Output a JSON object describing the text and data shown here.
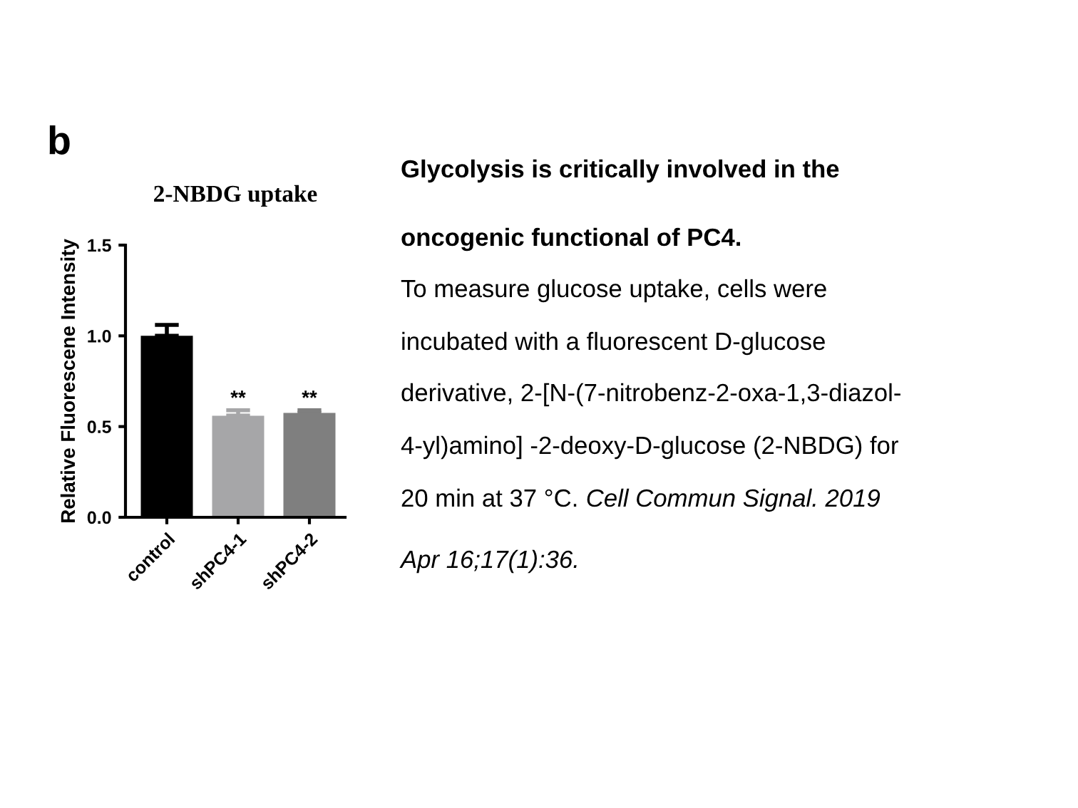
{
  "chart_data": {
    "type": "bar",
    "title": "2-NBDG uptake",
    "ylabel": "Relative Fluorescene Intensity",
    "categories": [
      "control",
      "shPC4-1",
      "shPC4-2"
    ],
    "values": [
      1.0,
      0.56,
      0.575
    ],
    "colors": [
      "#000000",
      "#a6a6a8",
      "#7f7f7f"
    ],
    "errors": [
      [
        1.0,
        1.06
      ],
      [
        0.56,
        0.59
      ],
      [
        0.575,
        0.59
      ]
    ],
    "ylim": [
      0,
      1.5
    ],
    "yticks": [
      {
        "value": 0,
        "label": "0.0"
      },
      {
        "value": 0.5,
        "label": "0.5"
      },
      {
        "value": 1.0,
        "label": "1.0"
      },
      {
        "value": 1.5,
        "label": "1.5"
      }
    ],
    "grid": false,
    "legend": false,
    "annotations": [
      "b",
      {
        "text": "**",
        "x": "shPC4-1",
        "y": 0.6
      },
      {
        "text": "**",
        "x": "shPC4-2",
        "y": 0.6
      },
      "Glycolysis is critically involved in the",
      "oncogenic functional of PC4.",
      "To measure glucose uptake, cells were",
      "incubated with a fluorescent D-glucose",
      "derivative, 2-[N-(7-nitrobenz-2-oxa-1,3-diazol-",
      "4-yl)amino] -2-deoxy-D-glucose (2-NBDG) for",
      "20 min at 37 °C.",
      "Cell Commun Signal. 2019",
      "Apr 16;17(1):36."
    ]
  }
}
